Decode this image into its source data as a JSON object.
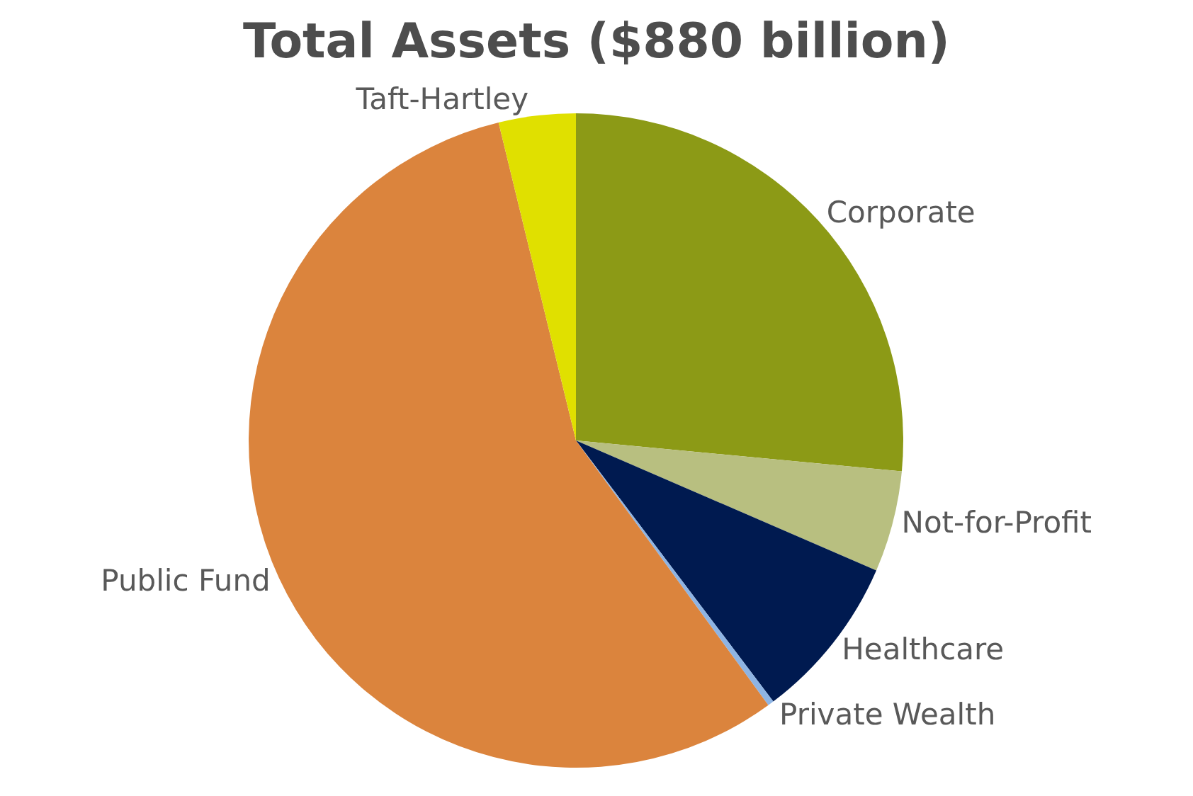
{
  "chart_data": {
    "type": "pie",
    "title": "Total Assets ($880 billion)",
    "categories": [
      "Corporate",
      "Not-for-Profit",
      "Healthcare",
      "Private Wealth",
      "Public Fund",
      "Taft-Hartley"
    ],
    "values": [
      26.5,
      5.0,
      8.2,
      0.3,
      56.2,
      3.8
    ],
    "colors": [
      "#8c9a16",
      "#b8bf80",
      "#001a50",
      "#8eb4e3",
      "#db843d",
      "#e0e000"
    ],
    "legend": false
  }
}
